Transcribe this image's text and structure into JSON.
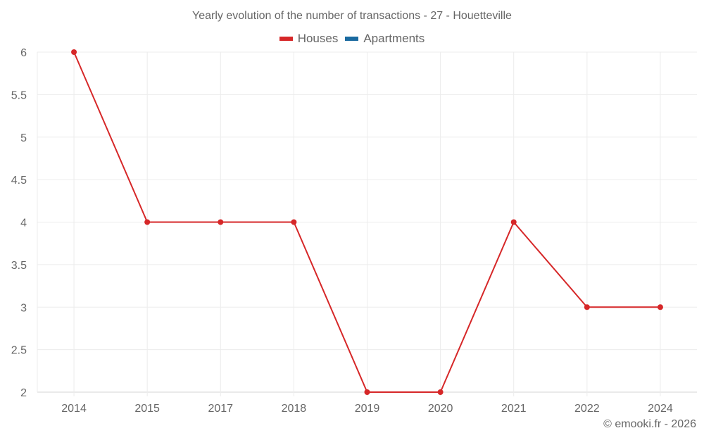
{
  "chart_data": {
    "type": "line",
    "title": "Yearly evolution of the number of transactions - 27 - Houetteville",
    "categories": [
      "2014",
      "2015",
      "2017",
      "2018",
      "2019",
      "2020",
      "2021",
      "2022",
      "2024"
    ],
    "series": [
      {
        "name": "Houses",
        "color": "#d62728",
        "values": [
          6,
          4,
          4,
          4,
          2,
          2,
          4,
          3,
          3
        ]
      },
      {
        "name": "Apartments",
        "color": "#1a6aa0",
        "values": []
      }
    ],
    "xlabel": "",
    "ylabel": "",
    "ylim": [
      2,
      6
    ],
    "yticks": [
      "2",
      "2.5",
      "3",
      "3.5",
      "4",
      "4.5",
      "5",
      "5.5",
      "6"
    ],
    "grid": true,
    "legend_position": "top"
  },
  "header": {
    "title": "Yearly evolution of the number of transactions - 27 - Houetteville"
  },
  "legend": {
    "items": [
      {
        "label": "Houses",
        "color": "#d62728"
      },
      {
        "label": "Apartments",
        "color": "#1a6aa0"
      }
    ]
  },
  "footer": {
    "credit": "© emooki.fr - 2026"
  }
}
